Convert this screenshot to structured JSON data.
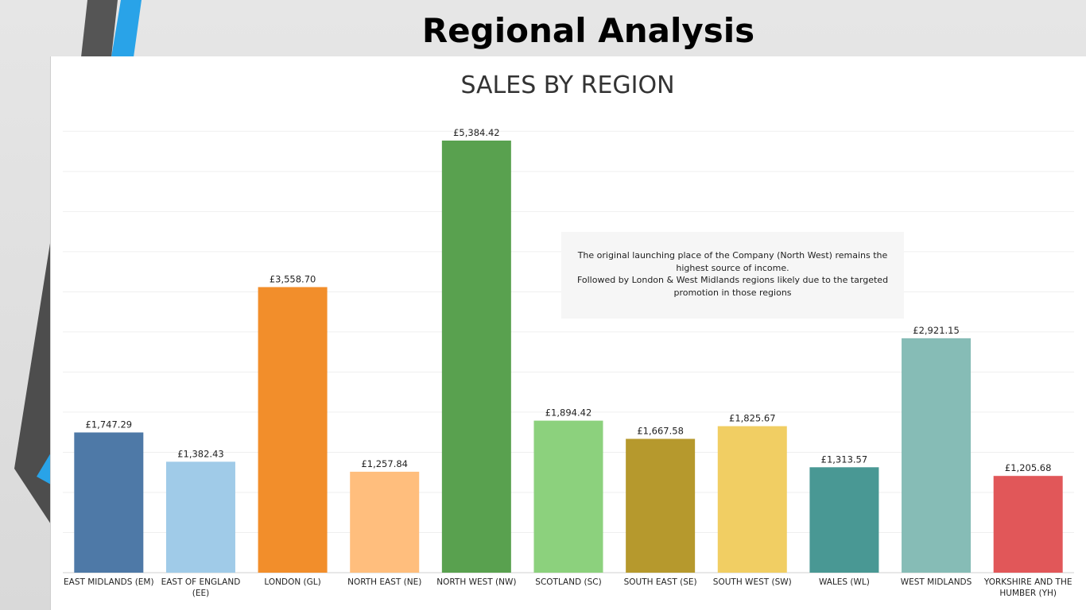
{
  "slide": {
    "title": "Regional Analysis"
  },
  "annotation": {
    "line1": "The original launching place of the Company (North West) remains the highest source of income.",
    "line2": "Followed by London & West Midlands regions likely due to the targeted promotion in those regions"
  },
  "chart_data": {
    "type": "bar",
    "title": "SALES BY REGION",
    "xlabel": "",
    "ylabel": "",
    "ylim": [
      0,
      5800
    ],
    "grid": true,
    "categories": [
      "EAST MIDLANDS (EM)",
      "EAST OF ENGLAND (EE)",
      "LONDON (GL)",
      "NORTH EAST (NE)",
      "NORTH WEST (NW)",
      "SCOTLAND (SC)",
      "SOUTH EAST (SE)",
      "SOUTH WEST (SW)",
      "WALES (WL)",
      "WEST MIDLANDS",
      "YORKSHIRE AND THE HUMBER (YH)"
    ],
    "category_lines": [
      [
        "EAST MIDLANDS (EM)"
      ],
      [
        "EAST OF ENGLAND",
        "(EE)"
      ],
      [
        "LONDON (GL)"
      ],
      [
        "NORTH EAST (NE)"
      ],
      [
        "NORTH WEST (NW)"
      ],
      [
        "SCOTLAND (SC)"
      ],
      [
        "SOUTH EAST (SE)"
      ],
      [
        "SOUTH WEST (SW)"
      ],
      [
        "WALES (WL)"
      ],
      [
        "WEST MIDLANDS"
      ],
      [
        "YORKSHIRE AND THE",
        "HUMBER (YH)"
      ]
    ],
    "values": [
      1747.29,
      1382.43,
      3558.7,
      1257.84,
      5384.42,
      1894.42,
      1667.58,
      1825.67,
      1313.57,
      2921.15,
      1205.68
    ],
    "data_labels": [
      "£1,747.29",
      "£1,382.43",
      "£3,558.70",
      "£1,257.84",
      "£5,384.42",
      "£1,894.42",
      "£1,667.58",
      "£1,825.67",
      "£1,313.57",
      "£2,921.15",
      "£1,205.68"
    ],
    "colors": [
      "#4e79a7",
      "#a0cbe8",
      "#f28e2b",
      "#ffbe7d",
      "#59a14f",
      "#8cd17d",
      "#b6992d",
      "#f1ce63",
      "#499894",
      "#86bcb6",
      "#e15759"
    ]
  }
}
